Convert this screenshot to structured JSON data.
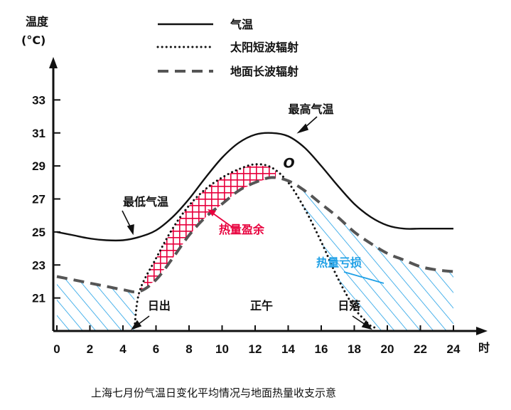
{
  "chart_data": {
    "type": "line",
    "title": "",
    "caption": "上海七月份气温日变化平均情况与地面热量收支示意",
    "ylabel_line1": "温度",
    "ylabel_line2": "(°C)",
    "xlabel": "时",
    "x_ticks": [
      0,
      2,
      4,
      6,
      8,
      10,
      12,
      14,
      16,
      18,
      20,
      22,
      24
    ],
    "y_ticks": [
      21,
      23,
      25,
      27,
      29,
      31,
      33
    ],
    "xlim": [
      0,
      24
    ],
    "ylim": [
      19.0,
      35.0
    ],
    "legend_position": "top",
    "legend": [
      {
        "label": "气温",
        "style": "solid"
      },
      {
        "label": "太阳短波辐射",
        "style": "dotted"
      },
      {
        "label": "地面长波辐射",
        "style": "dashed"
      }
    ],
    "series": [
      {
        "name": "气温",
        "style": "solid",
        "x": [
          0,
          1,
          2,
          3,
          4,
          5,
          6,
          7,
          8,
          9,
          10,
          11,
          12,
          13,
          14,
          15,
          16,
          17,
          18,
          19,
          20,
          21,
          22,
          23,
          24
        ],
        "y": [
          25.0,
          24.8,
          24.6,
          24.5,
          24.5,
          24.7,
          25.1,
          25.9,
          27.0,
          28.3,
          29.5,
          30.4,
          30.9,
          31.0,
          30.8,
          30.1,
          29.0,
          27.8,
          26.7,
          25.9,
          25.4,
          25.2,
          25.2,
          25.2,
          25.2
        ]
      },
      {
        "name": "太阳短波辐射",
        "style": "dotted",
        "x": [
          4.7,
          5.0,
          6.0,
          7.0,
          8.0,
          9.0,
          10.0,
          11.0,
          12.0,
          13.0,
          14.0,
          15.0,
          16.0,
          17.0,
          18.0,
          18.6,
          19.0,
          19.3
        ],
        "y": [
          19.2,
          21.4,
          23.4,
          25.2,
          26.6,
          27.6,
          28.3,
          28.8,
          29.1,
          28.9,
          28.0,
          26.4,
          24.4,
          22.2,
          20.4,
          19.7,
          19.3,
          19.2
        ]
      },
      {
        "name": "地面长波辐射",
        "style": "dashed",
        "x": [
          0,
          1,
          2,
          3,
          4,
          5,
          6,
          7,
          8,
          9,
          10,
          11,
          12,
          13,
          14,
          15,
          16,
          17,
          18,
          19,
          20,
          21,
          22,
          23,
          24
        ],
        "y": [
          22.3,
          22.1,
          21.9,
          21.7,
          21.5,
          21.4,
          22.1,
          23.4,
          24.8,
          25.9,
          26.7,
          27.5,
          28.0,
          28.3,
          28.1,
          27.5,
          26.7,
          25.9,
          25.0,
          24.3,
          23.7,
          23.3,
          22.9,
          22.7,
          22.6
        ]
      }
    ],
    "annotations": [
      {
        "text": "最高气温",
        "x": 14.0,
        "y": 32.2,
        "color": "#111111"
      },
      {
        "text": "最低气温",
        "x": 4.0,
        "y": 26.6,
        "color": "#111111"
      },
      {
        "text": "热量盈余",
        "x": 9.8,
        "y": 24.9,
        "color": "#e8003d"
      },
      {
        "text": "热量亏损",
        "x": 15.7,
        "y": 22.9,
        "color": "#1fa0e6"
      },
      {
        "text": "日出",
        "x": 5.5,
        "y": 20.3,
        "color": "#111111"
      },
      {
        "text": "正午",
        "x": 11.7,
        "y": 20.3,
        "color": "#111111"
      },
      {
        "text": "日落",
        "x": 17.0,
        "y": 20.3,
        "color": "#111111"
      },
      {
        "text": "O",
        "x": 13.7,
        "y": 28.9,
        "color": "#111111"
      }
    ],
    "colors": {
      "surplus": "#e8003d",
      "deficit": "#1fa0e6",
      "line": "#111111",
      "dashed": "#555555"
    },
    "grid": false
  }
}
